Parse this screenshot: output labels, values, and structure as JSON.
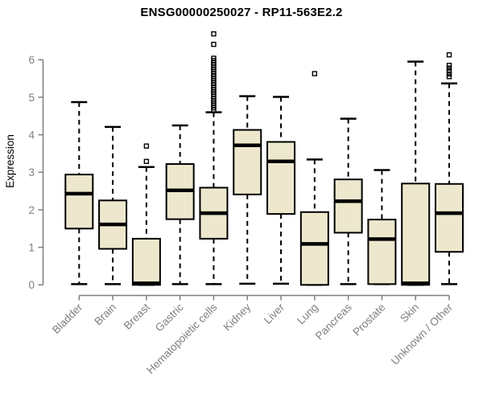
{
  "page": {
    "background": "#ffffff"
  },
  "chart_data": {
    "type": "boxplot",
    "title": "ENSG00000250027 - RP11-563E2.2",
    "ylabel": "Expression",
    "xlabel": "",
    "ylim": [
      0,
      6
    ],
    "yticks": [
      0,
      1,
      2,
      3,
      4,
      5,
      6
    ],
    "grid": false,
    "legend": false,
    "x_labels_rotation_deg": 45,
    "colors": {
      "box_fill": "#EDE8CD",
      "box_border": "#000000",
      "median": "#000000",
      "whisker": "#000000",
      "outlier": "#000000",
      "axis": "#7f7f7f",
      "title": "#000000"
    },
    "categories": [
      "Bladder",
      "Brain",
      "Breast",
      "Gastric",
      "Hematopoietic cells",
      "Kidney",
      "Liver",
      "Lung",
      "Pancreas",
      "Prostate",
      "Skin",
      "Unknown / Other"
    ],
    "series": [
      {
        "category": "Bladder",
        "low": 0.02,
        "q1": 1.5,
        "median": 2.43,
        "q3": 2.94,
        "high": 4.87,
        "outliers": []
      },
      {
        "category": "Brain",
        "low": 0.02,
        "q1": 0.96,
        "median": 1.61,
        "q3": 2.25,
        "high": 4.21,
        "outliers": []
      },
      {
        "category": "Breast",
        "low": 0.0,
        "q1": 0.0,
        "median": 0.04,
        "q3": 1.23,
        "high": 3.14,
        "outliers": [
          3.29,
          3.7
        ]
      },
      {
        "category": "Gastric",
        "low": 0.02,
        "q1": 1.75,
        "median": 2.52,
        "q3": 3.22,
        "high": 4.25,
        "outliers": []
      },
      {
        "category": "Hematopoietic cells",
        "low": 0.02,
        "q1": 1.23,
        "median": 1.91,
        "q3": 2.59,
        "high": 4.6,
        "outliers": [
          4.66,
          4.72,
          4.78,
          4.84,
          4.9,
          4.96,
          5.02,
          5.08,
          5.14,
          5.2,
          5.26,
          5.32,
          5.38,
          5.44,
          5.5,
          5.56,
          5.62,
          5.68,
          5.74,
          5.8,
          5.86,
          5.92,
          5.98,
          6.04,
          6.41,
          6.69
        ]
      },
      {
        "category": "Kidney",
        "low": 0.03,
        "q1": 2.41,
        "median": 3.72,
        "q3": 4.13,
        "high": 5.03,
        "outliers": []
      },
      {
        "category": "Liver",
        "low": 0.03,
        "q1": 1.89,
        "median": 3.29,
        "q3": 3.81,
        "high": 5.01,
        "outliers": []
      },
      {
        "category": "Lung",
        "low": 0.0,
        "q1": 0.0,
        "median": 1.09,
        "q3": 1.94,
        "high": 3.34,
        "outliers": [
          5.63
        ]
      },
      {
        "category": "Pancreas",
        "low": 0.02,
        "q1": 1.39,
        "median": 2.23,
        "q3": 2.81,
        "high": 4.43,
        "outliers": []
      },
      {
        "category": "Prostate",
        "low": 0.02,
        "q1": 0.02,
        "median": 1.22,
        "q3": 1.74,
        "high": 3.06,
        "outliers": []
      },
      {
        "category": "Skin",
        "low": 0.0,
        "q1": 0.0,
        "median": 0.04,
        "q3": 2.7,
        "high": 5.95,
        "outliers": []
      },
      {
        "category": "Unknown / Other",
        "low": 0.02,
        "q1": 0.88,
        "median": 1.91,
        "q3": 2.69,
        "high": 5.37,
        "outliers": [
          5.55,
          5.62,
          5.7,
          5.78,
          5.85,
          6.13
        ]
      }
    ]
  }
}
